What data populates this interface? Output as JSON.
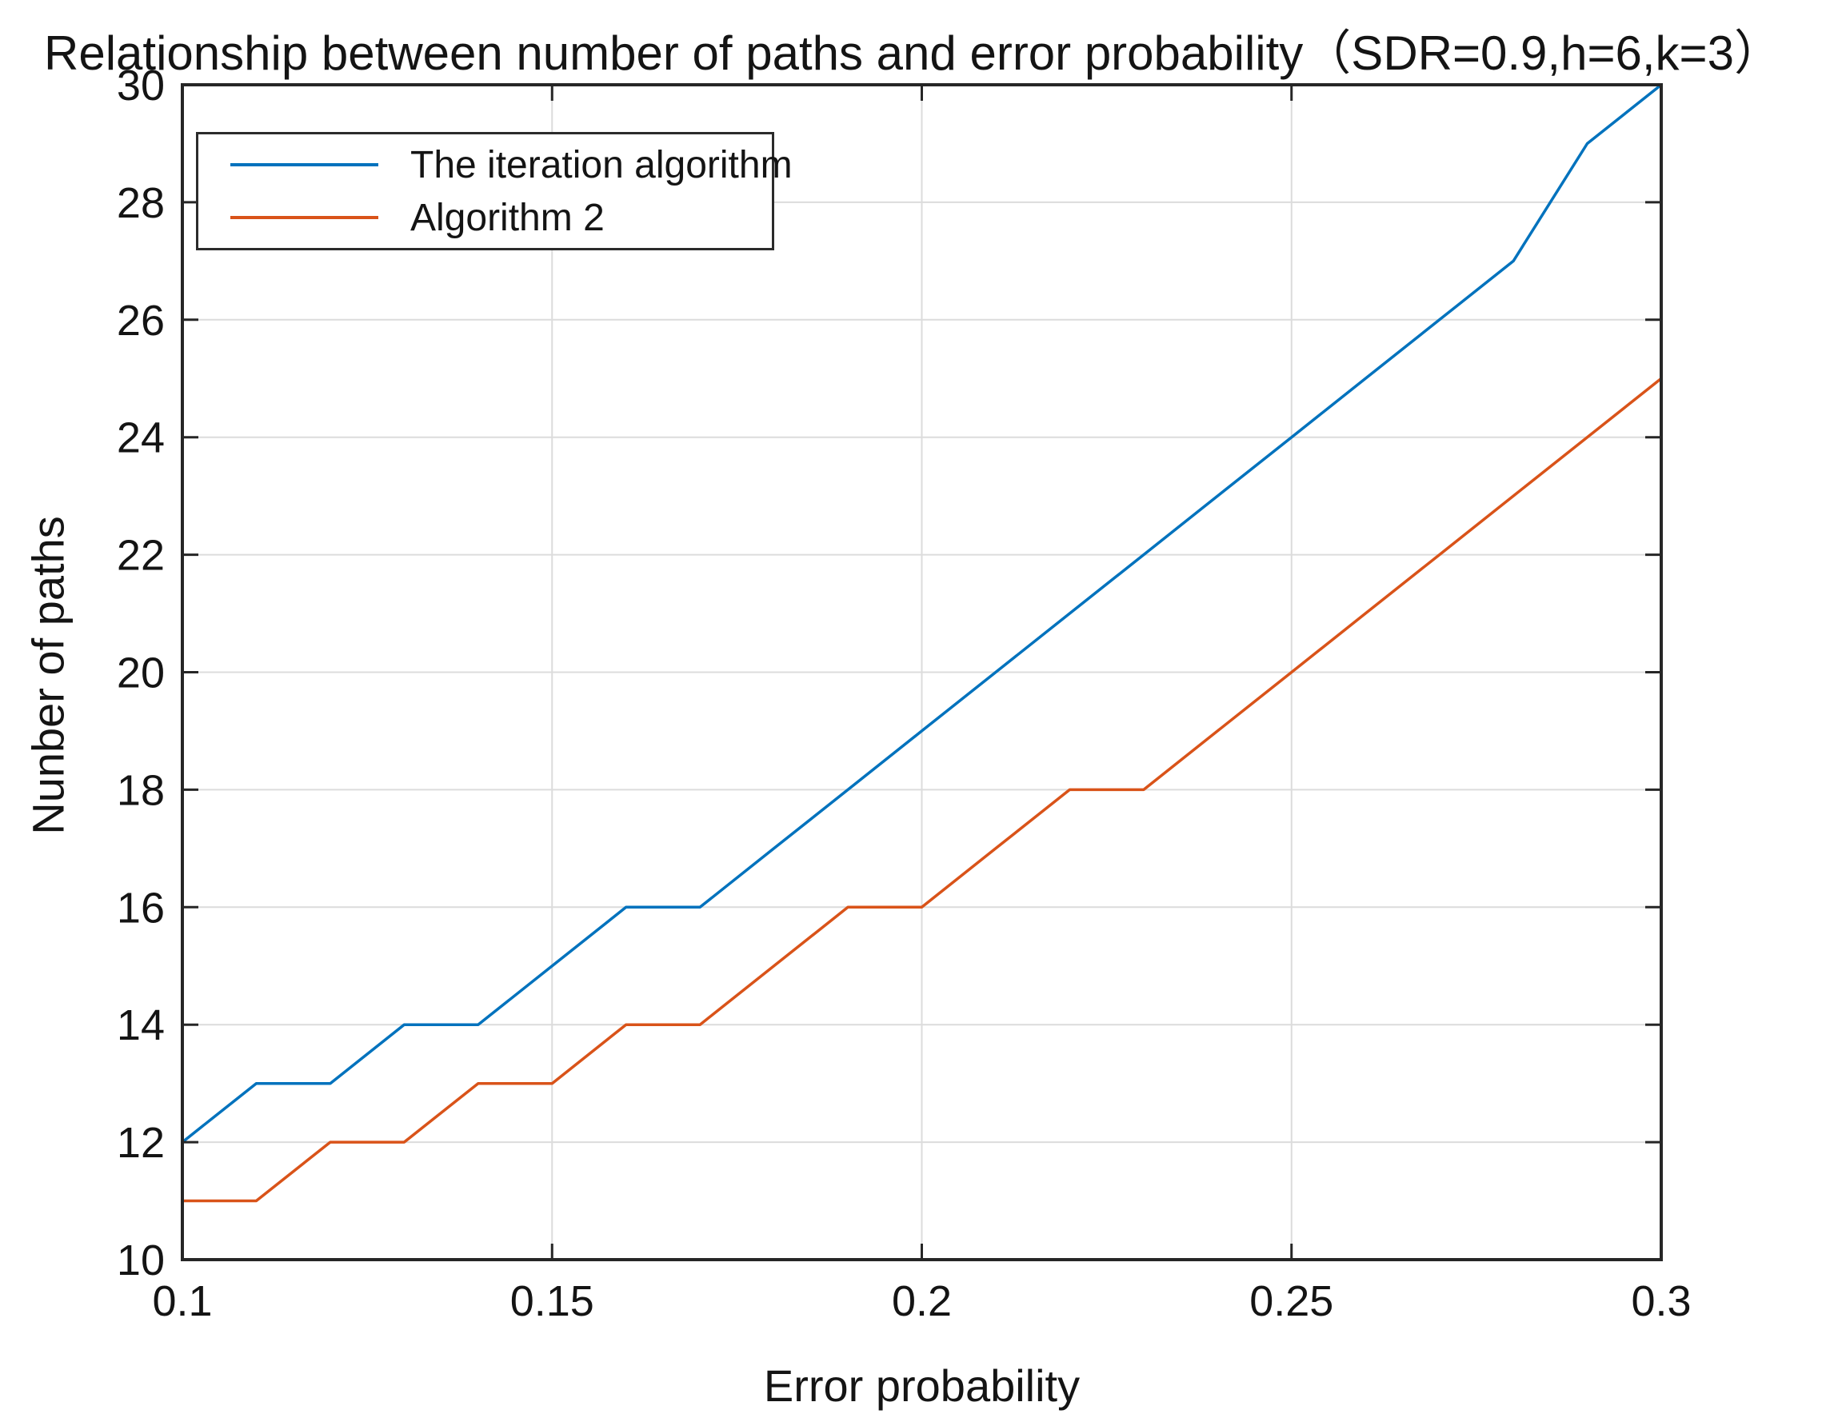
{
  "figure": {
    "background": "#ffffff",
    "axis_color": "#262626",
    "grid_color": "#dcdcdc"
  },
  "chart_data": {
    "type": "line",
    "title": "Relationship between number of paths and error probability（SDR=0.9,h=6,k=3）",
    "xlabel": "Error probability",
    "ylabel": "Nunber of paths",
    "xlim": [
      0.1,
      0.3
    ],
    "ylim": [
      10,
      30
    ],
    "xticks": [
      0.1,
      0.15,
      0.2,
      0.25,
      0.3
    ],
    "xtick_labels": [
      "0.1",
      "0.15",
      "0.2",
      "0.25",
      "0.3"
    ],
    "yticks": [
      10,
      12,
      14,
      16,
      18,
      20,
      22,
      24,
      26,
      28,
      30
    ],
    "ytick_labels": [
      "10",
      "12",
      "14",
      "16",
      "18",
      "20",
      "22",
      "24",
      "26",
      "28",
      "30"
    ],
    "grid": true,
    "legend_position": "top-left",
    "x": [
      0.1,
      0.11,
      0.12,
      0.13,
      0.14,
      0.15,
      0.16,
      0.17,
      0.18,
      0.19,
      0.2,
      0.21,
      0.22,
      0.23,
      0.24,
      0.25,
      0.26,
      0.27,
      0.28,
      0.29,
      0.3
    ],
    "series": [
      {
        "name": "The iteration algorithm",
        "color": "#0072BD",
        "values": [
          12,
          13,
          13,
          14,
          14,
          15,
          16,
          16,
          17,
          18,
          19,
          20,
          21,
          22,
          23,
          24,
          25,
          26,
          27,
          29,
          30
        ]
      },
      {
        "name": "Algorithm 2",
        "color": "#D95319",
        "values": [
          11,
          11,
          12,
          12,
          13,
          13,
          14,
          14,
          15,
          16,
          16,
          17,
          18,
          18,
          19,
          20,
          21,
          22,
          23,
          24,
          25
        ]
      }
    ]
  }
}
